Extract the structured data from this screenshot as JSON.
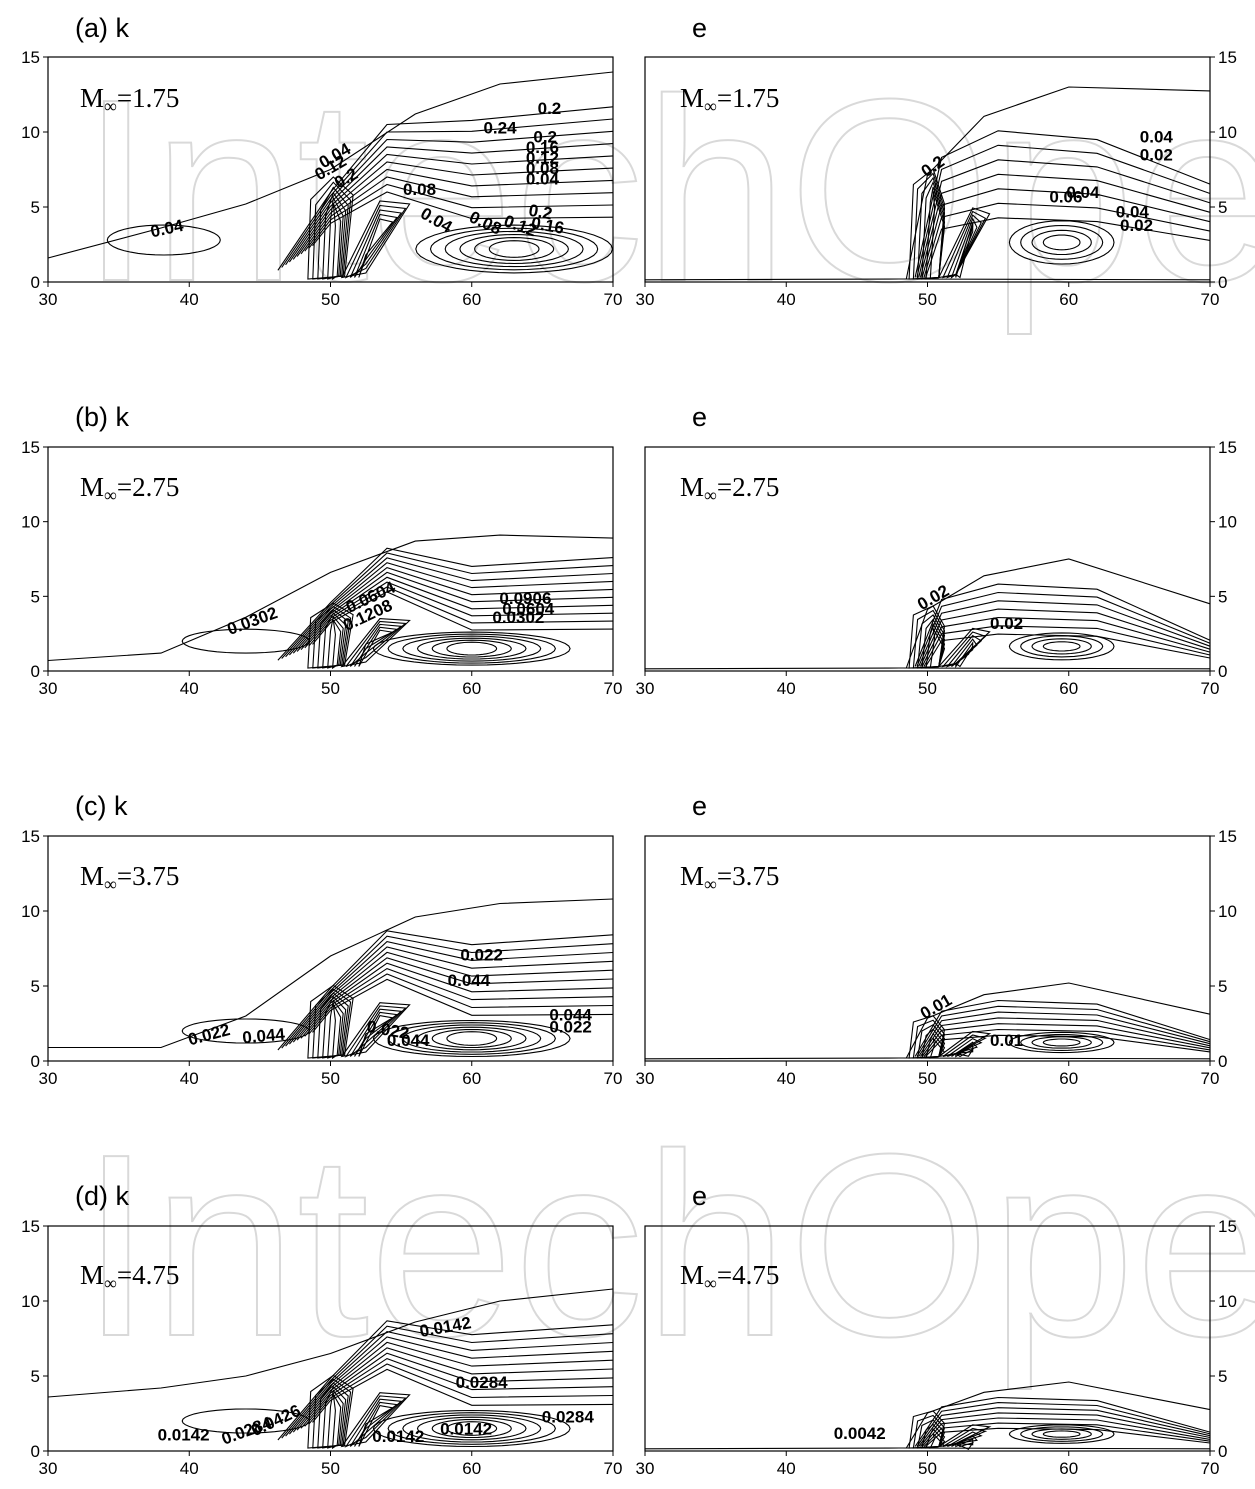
{
  "watermark": "IntechOpen",
  "chart_data": {
    "type": "contour",
    "x_ticks": [
      30,
      40,
      50,
      60,
      70
    ],
    "y_ticks": [
      0,
      5,
      10,
      15
    ],
    "xlim": [
      30,
      70
    ],
    "ylim": [
      0,
      15
    ],
    "rows": [
      {
        "mach": "1.75",
        "k": {
          "title": "(a) k",
          "labels": [
            {
              "text": "0.04",
              "x": 38.5,
              "y": 3.2,
              "rot": -12
            },
            {
              "text": "0.2",
              "x": 65.5,
              "y": 11.2,
              "rot": 0
            },
            {
              "text": "0.24",
              "x": 62.0,
              "y": 9.9,
              "rot": 0
            },
            {
              "text": "0.2",
              "x": 65.2,
              "y": 9.3,
              "rot": 0
            },
            {
              "text": "0.16",
              "x": 65.0,
              "y": 8.6,
              "rot": 0
            },
            {
              "text": "0.12",
              "x": 65.0,
              "y": 7.9,
              "rot": 0
            },
            {
              "text": "0.08",
              "x": 65.0,
              "y": 7.2,
              "rot": 0
            },
            {
              "text": "0.04",
              "x": 65.0,
              "y": 6.5,
              "rot": 0
            },
            {
              "text": "0.08",
              "x": 56.3,
              "y": 5.8,
              "rot": 0
            },
            {
              "text": "0.04",
              "x": 57.3,
              "y": 3.8,
              "rot": 30
            },
            {
              "text": "0.08",
              "x": 60.8,
              "y": 3.6,
              "rot": 25
            },
            {
              "text": "0.12",
              "x": 63.3,
              "y": 3.4,
              "rot": 20
            },
            {
              "text": "0.16",
              "x": 65.3,
              "y": 3.4,
              "rot": 10
            },
            {
              "text": "0.2",
              "x": 64.8,
              "y": 4.3,
              "rot": 10
            },
            {
              "text": "0.04",
              "x": 50.5,
              "y": 8.1,
              "rot": -30
            },
            {
              "text": "0.12",
              "x": 50.2,
              "y": 7.3,
              "rot": -30
            },
            {
              "text": "0.2",
              "x": 51.3,
              "y": 6.6,
              "rot": -30
            }
          ]
        },
        "e": {
          "title": "e",
          "labels": [
            {
              "text": "0.04",
              "x": 66.2,
              "y": 9.3,
              "rot": 0
            },
            {
              "text": "0.02",
              "x": 66.2,
              "y": 8.1,
              "rot": 0
            },
            {
              "text": "0.04",
              "x": 61.0,
              "y": 5.6,
              "rot": 0
            },
            {
              "text": "0.06",
              "x": 59.8,
              "y": 5.3,
              "rot": 0
            },
            {
              "text": "0.04",
              "x": 64.5,
              "y": 4.3,
              "rot": 0
            },
            {
              "text": "0.02",
              "x": 64.8,
              "y": 3.4,
              "rot": 0
            },
            {
              "text": "0.2",
              "x": 50.6,
              "y": 7.4,
              "rot": -35
            }
          ]
        }
      },
      {
        "mach": "2.75",
        "k": {
          "title": "(b) k",
          "labels": [
            {
              "text": "0.0302",
              "x": 44.6,
              "y": 3.0,
              "rot": -20
            },
            {
              "text": "0.0604",
              "x": 53.0,
              "y": 4.6,
              "rot": -25
            },
            {
              "text": "0.1208",
              "x": 52.8,
              "y": 3.4,
              "rot": -25
            },
            {
              "text": "0.0906",
              "x": 63.8,
              "y": 4.5,
              "rot": 0
            },
            {
              "text": "0.0604",
              "x": 64.0,
              "y": 3.8,
              "rot": 0
            },
            {
              "text": "0.0302",
              "x": 63.3,
              "y": 3.2,
              "rot": 0
            }
          ]
        },
        "e": {
          "title": "e",
          "labels": [
            {
              "text": "0.02",
              "x": 50.6,
              "y": 4.6,
              "rot": -30
            },
            {
              "text": "0.02",
              "x": 55.6,
              "y": 2.8,
              "rot": 0
            }
          ]
        }
      },
      {
        "mach": "3.75",
        "k": {
          "title": "(c) k",
          "labels": [
            {
              "text": "0.022",
              "x": 60.7,
              "y": 6.7,
              "rot": 0
            },
            {
              "text": "0.044",
              "x": 59.8,
              "y": 5.0,
              "rot": 0
            },
            {
              "text": "0.022",
              "x": 41.5,
              "y": 1.4,
              "rot": -15
            },
            {
              "text": "0.044",
              "x": 45.3,
              "y": 1.3,
              "rot": -5
            },
            {
              "text": "0.022",
              "x": 54.0,
              "y": 1.7,
              "rot": 10
            },
            {
              "text": "0.044",
              "x": 55.5,
              "y": 1.0,
              "rot": 0
            },
            {
              "text": "0.044",
              "x": 67.0,
              "y": 2.7,
              "rot": 0
            },
            {
              "text": "0.022",
              "x": 67.0,
              "y": 1.9,
              "rot": 0
            }
          ]
        },
        "e": {
          "title": "e",
          "labels": [
            {
              "text": "0.01",
              "x": 50.8,
              "y": 3.3,
              "rot": -30
            },
            {
              "text": "0.01",
              "x": 55.6,
              "y": 1.0,
              "rot": 0
            }
          ]
        }
      },
      {
        "mach": "4.75",
        "k": {
          "title": "(d) k",
          "labels": [
            {
              "text": "0.0142",
              "x": 58.2,
              "y": 7.9,
              "rot": -10
            },
            {
              "text": "0.0284",
              "x": 60.7,
              "y": 4.2,
              "rot": 0
            },
            {
              "text": "0.0284",
              "x": 66.8,
              "y": 1.9,
              "rot": 0
            },
            {
              "text": "0.0142",
              "x": 39.6,
              "y": 0.7,
              "rot": 0
            },
            {
              "text": "0.0284",
              "x": 44.2,
              "y": 1.0,
              "rot": -20
            },
            {
              "text": "0.0426",
              "x": 46.3,
              "y": 1.7,
              "rot": -25
            },
            {
              "text": "0.0142",
              "x": 54.8,
              "y": 0.6,
              "rot": 0
            },
            {
              "text": "0.0142",
              "x": 59.6,
              "y": 1.1,
              "rot": 0
            }
          ]
        },
        "e": {
          "title": "e",
          "labels": [
            {
              "text": "0.0042",
              "x": 45.2,
              "y": 0.8,
              "rot": 0
            }
          ]
        }
      }
    ]
  }
}
